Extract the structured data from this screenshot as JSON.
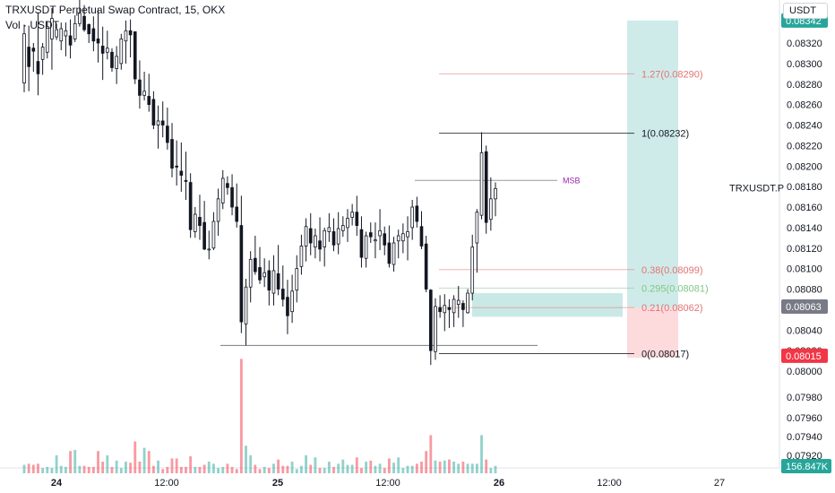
{
  "header": {
    "title": "TRXUSDT Perpetual Swap Contract, 15, OKX",
    "vol_label": "Vol · USDT",
    "currency": "USDT"
  },
  "chart_data": {
    "type": "candlestick",
    "symbol": "TRXUSDT.P",
    "y_axis": {
      "ticks": [
        0.08,
        0.0802,
        0.0804,
        0.0806,
        0.0808,
        0.081,
        0.0812,
        0.0814,
        0.0816,
        0.0818,
        0.082,
        0.0822,
        0.0824,
        0.0826,
        0.0828,
        0.083,
        0.0832
      ],
      "tick_labels": [
        "0.08000",
        "0.08020",
        "0.08040",
        "0.08060",
        "0.08080",
        "0.08100",
        "0.08120",
        "0.08140",
        "0.08160",
        "0.08180",
        "0.08200",
        "0.08220",
        "0.08240",
        "0.08260",
        "0.08280",
        "0.08300",
        "0.08320"
      ],
      "vol_ticks": [
        0.0792,
        0.0794,
        0.0796,
        0.0798
      ],
      "vol_tick_labels": [
        "0.07920",
        "0.07940",
        "0.07960",
        "0.07980"
      ]
    },
    "x_axis": {
      "labels": [
        "24",
        "12:00",
        "25",
        "12:00",
        "26",
        "12:00",
        "27"
      ],
      "bold": [
        true,
        false,
        true,
        false,
        true,
        false,
        false
      ]
    },
    "price_badges": [
      {
        "label": "0.08342",
        "value": 0.08342,
        "color": "#26a69a"
      },
      {
        "label": "0.08063",
        "value": 0.08063,
        "color": "#787b86"
      },
      {
        "label": "0.08015",
        "value": 0.08015,
        "color": "#f23645"
      },
      {
        "label": "156.847K",
        "value": 0.07914,
        "color": "#26a69a"
      }
    ],
    "symbol_label_value": 0.08179,
    "fib_levels": [
      {
        "label": "1.27(0.08290)",
        "value": 0.0829,
        "color": "#e57373"
      },
      {
        "label": "1(0.08232)",
        "value": 0.08232,
        "color": "#131722"
      },
      {
        "label": "0.38(0.08099)",
        "value": 0.08099,
        "color": "#e57373"
      },
      {
        "label": "0.295(0.08081)",
        "value": 0.08081,
        "color": "#81c784"
      },
      {
        "label": "0.21(0.08062)",
        "value": 0.08062,
        "color": "#e57373"
      },
      {
        "label": "0(0.08017)",
        "value": 0.08017,
        "color": "#131722"
      }
    ],
    "annotations": {
      "msb": {
        "label": "MSB",
        "value": 0.08186,
        "color": "#9c27b0"
      }
    },
    "candles": [
      [
        0.08281,
        0.08338,
        0.08272,
        0.08329
      ],
      [
        0.08316,
        0.08337,
        0.08273,
        0.08297
      ],
      [
        0.08315,
        0.0832,
        0.08292,
        0.08312
      ],
      [
        0.08302,
        0.0835,
        0.08269,
        0.0829
      ],
      [
        0.08304,
        0.0832,
        0.08289,
        0.08316
      ],
      [
        0.08311,
        0.08341,
        0.08305,
        0.08336
      ],
      [
        0.08324,
        0.08354,
        0.08294,
        0.08344
      ],
      [
        0.08326,
        0.08339,
        0.08323,
        0.08333
      ],
      [
        0.08322,
        0.0834,
        0.08313,
        0.08334
      ],
      [
        0.08327,
        0.0834,
        0.08307,
        0.08332
      ],
      [
        0.08327,
        0.08343,
        0.08305,
        0.08318
      ],
      [
        0.08324,
        0.08347,
        0.08321,
        0.08339
      ],
      [
        0.08339,
        0.08365,
        0.08336,
        0.08349
      ],
      [
        0.08346,
        0.08357,
        0.08331,
        0.08333
      ],
      [
        0.08338,
        0.08339,
        0.0832,
        0.08329
      ],
      [
        0.08334,
        0.08346,
        0.08312,
        0.08322
      ],
      [
        0.08324,
        0.08353,
        0.08301,
        0.0832
      ],
      [
        0.08317,
        0.08336,
        0.08284,
        0.0831
      ],
      [
        0.08311,
        0.08332,
        0.08304,
        0.08315
      ],
      [
        0.08311,
        0.08315,
        0.08292,
        0.08296
      ],
      [
        0.08295,
        0.08317,
        0.0828,
        0.08307
      ],
      [
        0.083,
        0.08329,
        0.08294,
        0.08324
      ],
      [
        0.08322,
        0.08342,
        0.083,
        0.08332
      ],
      [
        0.08332,
        0.08343,
        0.08306,
        0.08328
      ],
      [
        0.08331,
        0.08331,
        0.0828,
        0.08285
      ],
      [
        0.08284,
        0.08303,
        0.08256,
        0.08269
      ],
      [
        0.08269,
        0.08292,
        0.08264,
        0.08273
      ],
      [
        0.08268,
        0.0829,
        0.08253,
        0.0826
      ],
      [
        0.08265,
        0.08273,
        0.08236,
        0.0824
      ],
      [
        0.0824,
        0.08259,
        0.08217,
        0.08244
      ],
      [
        0.08244,
        0.08263,
        0.08228,
        0.0824
      ],
      [
        0.08239,
        0.08257,
        0.08216,
        0.08223
      ],
      [
        0.08226,
        0.08242,
        0.08189,
        0.08198
      ],
      [
        0.082,
        0.08225,
        0.08181,
        0.08199
      ],
      [
        0.08195,
        0.08223,
        0.08175,
        0.08191
      ],
      [
        0.08186,
        0.08214,
        0.08167,
        0.08185
      ],
      [
        0.08184,
        0.08193,
        0.0813,
        0.08138
      ],
      [
        0.08136,
        0.0816,
        0.0813,
        0.08153
      ],
      [
        0.0815,
        0.08172,
        0.08128,
        0.08142
      ],
      [
        0.08145,
        0.08166,
        0.08118,
        0.08119
      ],
      [
        0.08119,
        0.08137,
        0.08109,
        0.08119
      ],
      [
        0.0812,
        0.08155,
        0.08118,
        0.08146
      ],
      [
        0.08146,
        0.08178,
        0.08132,
        0.08168
      ],
      [
        0.08164,
        0.08196,
        0.08158,
        0.08188
      ],
      [
        0.08183,
        0.0819,
        0.08172,
        0.08179
      ],
      [
        0.08179,
        0.08192,
        0.08152,
        0.0816
      ],
      [
        0.0816,
        0.08183,
        0.0814,
        0.08146
      ],
      [
        0.08142,
        0.08171,
        0.08037,
        0.08048
      ],
      [
        0.08046,
        0.0809,
        0.08025,
        0.08082
      ],
      [
        0.08082,
        0.08117,
        0.08067,
        0.08109
      ],
      [
        0.0811,
        0.08132,
        0.08094,
        0.08097
      ],
      [
        0.08101,
        0.08121,
        0.08085,
        0.08089
      ],
      [
        0.08092,
        0.0811,
        0.08082,
        0.08096
      ],
      [
        0.08098,
        0.08108,
        0.08064,
        0.08079
      ],
      [
        0.08076,
        0.08113,
        0.08064,
        0.08098
      ],
      [
        0.08095,
        0.08123,
        0.08074,
        0.0808
      ],
      [
        0.0808,
        0.08103,
        0.08063,
        0.0807
      ],
      [
        0.08072,
        0.08089,
        0.08036,
        0.08054
      ],
      [
        0.08058,
        0.08094,
        0.08047,
        0.08078
      ],
      [
        0.08079,
        0.08113,
        0.08067,
        0.081
      ],
      [
        0.08102,
        0.08133,
        0.08094,
        0.08122
      ],
      [
        0.08122,
        0.08149,
        0.08107,
        0.08141
      ],
      [
        0.08139,
        0.08154,
        0.08113,
        0.08125
      ],
      [
        0.08121,
        0.08139,
        0.0811,
        0.08132
      ],
      [
        0.08127,
        0.0815,
        0.08107,
        0.08119
      ],
      [
        0.08121,
        0.0814,
        0.08102,
        0.08137
      ],
      [
        0.08136,
        0.08154,
        0.08126,
        0.0814
      ],
      [
        0.08136,
        0.08149,
        0.08117,
        0.08123
      ],
      [
        0.08124,
        0.08155,
        0.08114,
        0.08139
      ],
      [
        0.08137,
        0.08151,
        0.08131,
        0.08142
      ],
      [
        0.0814,
        0.08158,
        0.08126,
        0.08149
      ],
      [
        0.0815,
        0.08163,
        0.08142,
        0.08155
      ],
      [
        0.08155,
        0.08171,
        0.08132,
        0.08142
      ],
      [
        0.08138,
        0.08151,
        0.08101,
        0.08111
      ],
      [
        0.0811,
        0.08136,
        0.08101,
        0.08132
      ],
      [
        0.08135,
        0.08145,
        0.08125,
        0.08131
      ],
      [
        0.08127,
        0.08145,
        0.0811,
        0.08128
      ],
      [
        0.08132,
        0.08158,
        0.08118,
        0.08137
      ],
      [
        0.08134,
        0.08141,
        0.08113,
        0.08123
      ],
      [
        0.08125,
        0.08142,
        0.08101,
        0.08105
      ],
      [
        0.08104,
        0.08131,
        0.08097,
        0.08125
      ],
      [
        0.08127,
        0.08138,
        0.0811,
        0.08132
      ],
      [
        0.08127,
        0.08144,
        0.08115,
        0.08134
      ],
      [
        0.08131,
        0.08151,
        0.08108,
        0.08136
      ],
      [
        0.0814,
        0.08167,
        0.08128,
        0.0816
      ],
      [
        0.08161,
        0.0817,
        0.0814,
        0.08146
      ],
      [
        0.08141,
        0.08156,
        0.08119,
        0.08122
      ],
      [
        0.08124,
        0.08132,
        0.08077,
        0.0808
      ],
      [
        0.08079,
        0.0808,
        0.08006,
        0.0802
      ],
      [
        0.08019,
        0.08071,
        0.08011,
        0.08063
      ],
      [
        0.08062,
        0.08074,
        0.08052,
        0.08058
      ],
      [
        0.08057,
        0.08075,
        0.08039,
        0.08064
      ],
      [
        0.08062,
        0.0807,
        0.08042,
        0.0806
      ],
      [
        0.08057,
        0.08074,
        0.08043,
        0.0807
      ],
      [
        0.08065,
        0.08083,
        0.08052,
        0.08069
      ],
      [
        0.08066,
        0.08069,
        0.08043,
        0.0806
      ],
      [
        0.08057,
        0.0808,
        0.08056,
        0.08076
      ],
      [
        0.08076,
        0.08133,
        0.08069,
        0.08121
      ],
      [
        0.08125,
        0.08158,
        0.08096,
        0.08155
      ],
      [
        0.08152,
        0.08233,
        0.08148,
        0.08213
      ],
      [
        0.08214,
        0.0822,
        0.08134,
        0.08145
      ],
      [
        0.08148,
        0.08189,
        0.08137,
        0.08168
      ],
      [
        0.08168,
        0.08184,
        0.08151,
        0.08178
      ]
    ],
    "volume": [
      8,
      9,
      8,
      9,
      5,
      6,
      5,
      17,
      7,
      6,
      21,
      22,
      7,
      7,
      6,
      6,
      21,
      11,
      17,
      6,
      12,
      5,
      11,
      10,
      30,
      11,
      24,
      21,
      7,
      12,
      4,
      6,
      14,
      14,
      6,
      6,
      16,
      6,
      6,
      8,
      11,
      9,
      5,
      6,
      9,
      6,
      4,
      108,
      26,
      17,
      8,
      4,
      6,
      5,
      9,
      13,
      7,
      7,
      11,
      4,
      7,
      17,
      8,
      15,
      5,
      5,
      11,
      6,
      9,
      13,
      8,
      8,
      15,
      5,
      11,
      12,
      7,
      9,
      5,
      14,
      10,
      15,
      5,
      7,
      7,
      9,
      11,
      21,
      36,
      12,
      11,
      12,
      13,
      11,
      9,
      11,
      9,
      9,
      9,
      36,
      13,
      5,
      7
    ],
    "volume_axis_max": 110
  }
}
